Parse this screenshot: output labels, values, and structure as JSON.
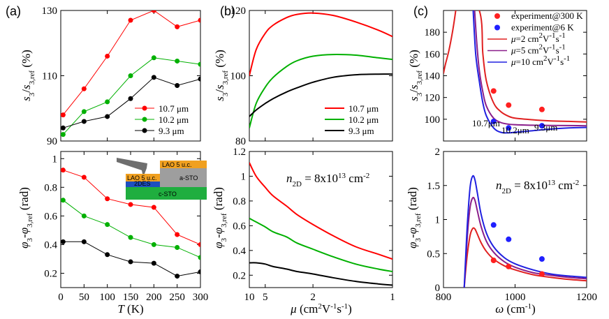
{
  "panel_labels": [
    "(a)",
    "(b)",
    "(c)"
  ],
  "chart_data": [
    {
      "id": "a_top",
      "type": "line",
      "xlabel": "",
      "ylabel": "s3/s3,ref (%)",
      "xlim": [
        0,
        300
      ],
      "ylim": [
        90,
        130
      ],
      "yticks": [
        90,
        110,
        130
      ],
      "xticks": [
        0,
        100,
        200,
        300
      ],
      "x": [
        5,
        50,
        100,
        150,
        200,
        250,
        300
      ],
      "series": [
        {
          "name": "10.7 μm",
          "color": "#ff0000",
          "values": [
            98,
            106,
            116,
            127,
            130,
            125,
            127
          ]
        },
        {
          "name": "10.2 μm",
          "color": "#00b000",
          "values": [
            92,
            99,
            102,
            110,
            115.5,
            114.5,
            113.5
          ]
        },
        {
          "name": "9.3 μm",
          "color": "#000000",
          "values": [
            94,
            96,
            97.5,
            103,
            109.5,
            107,
            109
          ]
        }
      ],
      "legend": "bottom-right"
    },
    {
      "id": "a_bottom",
      "type": "line",
      "xlabel": "T (K)",
      "ylabel": "φ3-φ3,ref (rad)",
      "xlim": [
        0,
        300
      ],
      "ylim": [
        0.1,
        1.05
      ],
      "yticks": [
        0.2,
        0.4,
        0.6,
        0.8,
        1
      ],
      "xticks": [
        0,
        50,
        100,
        150,
        200,
        250,
        300
      ],
      "x": [
        5,
        50,
        100,
        150,
        200,
        250,
        300
      ],
      "series": [
        {
          "name": "10.7 μm",
          "color": "#ff0000",
          "values": [
            0.92,
            0.87,
            0.72,
            0.68,
            0.66,
            0.47,
            0.4
          ]
        },
        {
          "name": "10.2 μm",
          "color": "#00b000",
          "values": [
            0.71,
            0.6,
            0.54,
            0.45,
            0.4,
            0.38,
            0.31
          ]
        },
        {
          "name": "9.3 μm",
          "color": "#000000",
          "values": [
            0.42,
            0.42,
            0.33,
            0.28,
            0.27,
            0.18,
            0.21
          ]
        }
      ],
      "inset": {
        "labels": [
          "LAO 5 u.c.",
          "2DES",
          "c-STO",
          "LAO 5 u.c.",
          "a-STO"
        ]
      }
    },
    {
      "id": "b_top",
      "type": "line",
      "xlabel": "",
      "ylabel": "s3/s3,ref (%)",
      "xscale": "reciprocal",
      "xlim": [
        10,
        1
      ],
      "ylim": [
        80,
        120
      ],
      "yticks": [
        80,
        100,
        120
      ],
      "xticks": [
        10,
        5,
        2,
        1
      ],
      "x": [
        10,
        7,
        5,
        4,
        3,
        2.5,
        2,
        1.6,
        1.3,
        1.1,
        1
      ],
      "series": [
        {
          "name": "10.7 μm",
          "color": "#ff0000",
          "values": [
            100,
            108,
            113,
            115.5,
            117.8,
            118.8,
            119.2,
            118.5,
            116.5,
            114,
            112
          ]
        },
        {
          "name": "10.2 μm",
          "color": "#00b000",
          "values": [
            84,
            91.5,
            96.5,
            99.5,
            102.8,
            104.6,
            106,
            106.5,
            106.3,
            105.5,
            105
          ]
        },
        {
          "name": "9.3 μm",
          "color": "#000000",
          "values": [
            87.5,
            89.5,
            91.5,
            93,
            95,
            96.3,
            98,
            99.5,
            100.3,
            100.5,
            100.5
          ]
        }
      ],
      "legend": "bottom-right"
    },
    {
      "id": "b_bottom",
      "type": "line",
      "xlabel": "μ (cm2V-1s-1)",
      "ylabel": "φ3-φ3,ref (rad)",
      "xscale": "reciprocal",
      "xlim": [
        10,
        1
      ],
      "ylim": [
        0.1,
        1.2
      ],
      "yticks": [
        0.2,
        0.4,
        0.6,
        0.8,
        1,
        1.2
      ],
      "xticks": [
        10,
        5,
        2,
        1
      ],
      "annotation": "n2D = 8x10^13 cm^-2",
      "x": [
        10,
        7,
        5,
        4,
        3,
        2.5,
        2,
        1.6,
        1.3,
        1.1,
        1
      ],
      "series": [
        {
          "name": "10.7 μm",
          "color": "#ff0000",
          "values": [
            1.11,
            1.0,
            0.91,
            0.84,
            0.76,
            0.69,
            0.61,
            0.52,
            0.43,
            0.37,
            0.33
          ]
        },
        {
          "name": "10.2 μm",
          "color": "#00b000",
          "values": [
            0.66,
            0.63,
            0.59,
            0.55,
            0.51,
            0.46,
            0.41,
            0.35,
            0.29,
            0.25,
            0.23
          ]
        },
        {
          "name": "9.3 μm",
          "color": "#000000",
          "values": [
            0.3,
            0.3,
            0.29,
            0.27,
            0.25,
            0.23,
            0.21,
            0.18,
            0.15,
            0.13,
            0.12
          ]
        }
      ]
    },
    {
      "id": "c_top",
      "type": "line",
      "xlabel": "",
      "ylabel": "s3/s3,ref (%)",
      "xlim": [
        800,
        1200
      ],
      "ylim": [
        80,
        200
      ],
      "yticks": [
        100,
        120,
        140,
        160,
        180
      ],
      "xticks": [
        800,
        1000,
        1200
      ],
      "series": [
        {
          "name": "μ=2 cm²V⁻¹s⁻¹",
          "color": "#e02020",
          "x": [
            800,
            805,
            815,
            825,
            833,
            838,
            842,
            900,
            910,
            920,
            940,
            960,
            980,
            1000,
            1050,
            1100,
            1150,
            1200
          ],
          "values": [
            142,
            150,
            163,
            180,
            197,
            210,
            225,
            200,
            160,
            135,
            115,
            107,
            103,
            101,
            99.5,
            98.5,
            98,
            97.5
          ]
        },
        {
          "name": "μ=5 cm²V⁻¹s⁻¹",
          "color": "#8a1e8a",
          "x": [
            887,
            893,
            900,
            910,
            920,
            940,
            960,
            980,
            1000,
            1050,
            1100,
            1150,
            1200
          ],
          "values": [
            200,
            170,
            145,
            125,
            112,
            101,
            97,
            95.5,
            95,
            94.5,
            94.3,
            94.2,
            94
          ]
        },
        {
          "name": "μ=10 cm²V⁻¹s⁻¹",
          "color": "#2020e0",
          "x": [
            883,
            890,
            900,
            910,
            920,
            940,
            960,
            980,
            1000,
            1050,
            1100,
            1150,
            1200
          ],
          "values": [
            200,
            160,
            135,
            115,
            103,
            92,
            88,
            87.5,
            88,
            89.5,
            91,
            92,
            92.5
          ]
        },
        {
          "name": "experiment@300 K",
          "color": "#ff2020",
          "kind": "scatter",
          "x": [
            940,
            982,
            1075
          ],
          "values": [
            126,
            113,
            109
          ]
        },
        {
          "name": "experiment@6 K",
          "color": "#2020ff",
          "kind": "scatter",
          "x": [
            940,
            982,
            1075
          ],
          "values": [
            98,
            92,
            94
          ]
        }
      ],
      "point_labels": [
        "10.7μm",
        "10.2μm",
        "9.3μm"
      ],
      "legend": "top-right"
    },
    {
      "id": "c_bottom",
      "type": "line",
      "xlabel": "ω (cm-1)",
      "ylabel": "φ3-φ3,ref (rad)",
      "xlim": [
        800,
        1200
      ],
      "ylim": [
        0,
        2
      ],
      "yticks": [
        0,
        0.5,
        1,
        1.5,
        2
      ],
      "xticks": [
        800,
        1000,
        1200
      ],
      "annotation": "n2D = 8x10^13 cm^-2",
      "series": [
        {
          "name": "μ=2 cm²V⁻¹s⁻¹",
          "color": "#e02020",
          "x": [
            858,
            862,
            868,
            875,
            882,
            888,
            895,
            905,
            920,
            940,
            970,
            1000,
            1050,
            1100,
            1150,
            1200
          ],
          "values": [
            0,
            0.25,
            0.55,
            0.78,
            0.87,
            0.86,
            0.78,
            0.66,
            0.53,
            0.42,
            0.32,
            0.26,
            0.19,
            0.15,
            0.12,
            0.1
          ]
        },
        {
          "name": "μ=5 cm²V⁻¹s⁻¹",
          "color": "#8a1e8a",
          "x": [
            858,
            862,
            868,
            875,
            882,
            888,
            895,
            905,
            920,
            940,
            970,
            1000,
            1050,
            1100,
            1150,
            1200
          ],
          "values": [
            0,
            0.35,
            0.85,
            1.2,
            1.32,
            1.28,
            1.12,
            0.9,
            0.68,
            0.52,
            0.38,
            0.3,
            0.22,
            0.18,
            0.15,
            0.13
          ]
        },
        {
          "name": "μ=10 cm²V⁻¹s⁻¹",
          "color": "#2020e0",
          "x": [
            858,
            862,
            868,
            875,
            882,
            888,
            895,
            905,
            920,
            940,
            970,
            1000,
            1050,
            1100,
            1150,
            1200
          ],
          "values": [
            0,
            0.45,
            1.05,
            1.5,
            1.64,
            1.58,
            1.38,
            1.08,
            0.8,
            0.6,
            0.44,
            0.35,
            0.26,
            0.2,
            0.17,
            0.15
          ]
        },
        {
          "name": "experiment@300 K",
          "color": "#ff2020",
          "kind": "scatter",
          "x": [
            940,
            982,
            1075
          ],
          "values": [
            0.4,
            0.31,
            0.2
          ]
        },
        {
          "name": "experiment@6 K",
          "color": "#2020ff",
          "kind": "scatter",
          "x": [
            940,
            982,
            1075
          ],
          "values": [
            0.92,
            0.71,
            0.42
          ]
        }
      ]
    }
  ]
}
